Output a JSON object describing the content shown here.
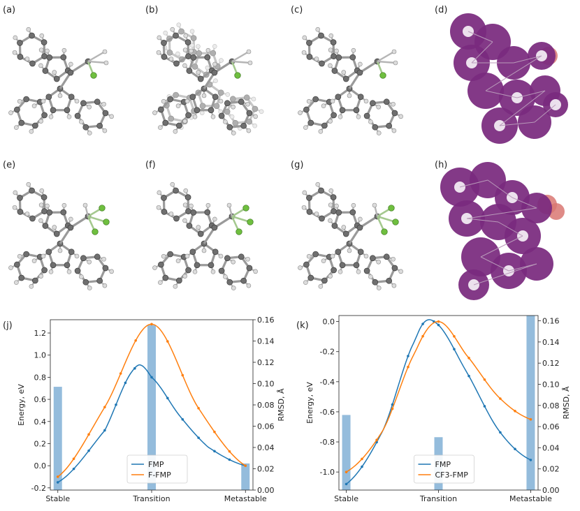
{
  "panel_labels": [
    "(a)",
    "(b)",
    "(c)",
    "(d)",
    "(e)",
    "(f)",
    "(g)",
    "(h)",
    "(j)",
    "(k)"
  ],
  "molecule_views": [
    {
      "panel": "(a)",
      "style": "ball-and-stick",
      "overlay": false,
      "fluorines": 1
    },
    {
      "panel": "(b)",
      "style": "ball-and-stick",
      "overlay": true,
      "fluorines": 1
    },
    {
      "panel": "(c)",
      "style": "ball-and-stick",
      "overlay": false,
      "fluorines": 1
    },
    {
      "panel": "(d)",
      "style": "surface",
      "overlay": false,
      "surface_color": "#7a2a7e"
    },
    {
      "panel": "(e)",
      "style": "ball-and-stick",
      "overlay": false,
      "fluorines": 3
    },
    {
      "panel": "(f)",
      "style": "ball-and-stick",
      "overlay": false,
      "fluorines": 3
    },
    {
      "panel": "(g)",
      "style": "ball-and-stick",
      "overlay": false,
      "fluorines": 3
    },
    {
      "panel": "(h)",
      "style": "surface",
      "overlay": false,
      "surface_color": "#7a2a7e"
    }
  ],
  "colors": {
    "carbon": "#6f6f6f",
    "hydrogen": "#dcdcdc",
    "fluorine": "#6fbf3f",
    "blue": "#1f77b4",
    "orange": "#ff7f0e",
    "bar": "#94bcdc"
  },
  "chart_data": [
    {
      "panel": "(j)",
      "type": "line",
      "categories": [
        "Stable",
        "Transition",
        "Metastable"
      ],
      "ylabel": "Energy, eV",
      "y2label": "RMSD, Å",
      "ylim": [
        -0.22,
        1.32
      ],
      "yticks": [
        "-0.2",
        "0.0",
        "0.2",
        "0.4",
        "0.6",
        "0.8",
        "1.0",
        "1.2"
      ],
      "y2lim": [
        0,
        0.16
      ],
      "y2ticks": [
        "0.00",
        "0.02",
        "0.04",
        "0.06",
        "0.08",
        "0.10",
        "0.12",
        "0.14",
        "0.16"
      ],
      "bars": {
        "axis": "right",
        "positions": [
          0,
          1,
          2
        ],
        "values": [
          0.097,
          0.155,
          0.025
        ]
      },
      "series": [
        {
          "name": "FMP",
          "color": "#1f77b4",
          "x": [
            0,
            0.5,
            0.82,
            1.0,
            1.3,
            1.6,
            2.0
          ],
          "y": [
            -0.15,
            0.32,
            0.88,
            0.8,
            0.45,
            0.17,
            0.0
          ],
          "pts": [
            0.0,
            0.17,
            0.33,
            0.5,
            0.62,
            0.72,
            0.82,
            1.0,
            1.17,
            1.33,
            1.5,
            1.67,
            1.83,
            2.0
          ]
        },
        {
          "name": "F-FMP",
          "color": "#ff7f0e",
          "x": [
            0,
            0.5,
            1.0,
            1.5,
            2.0
          ],
          "y": [
            -0.1,
            0.53,
            1.28,
            0.52,
            0.0
          ],
          "pts": [
            0.0,
            0.17,
            0.33,
            0.5,
            0.67,
            0.83,
            1.0,
            1.17,
            1.33,
            1.5,
            1.67,
            1.83,
            2.0
          ]
        }
      ],
      "legend": "bottom-center"
    },
    {
      "panel": "(k)",
      "type": "line",
      "categories": [
        "Stable",
        "Transition",
        "Metastable"
      ],
      "ylabel": "Energy, eV",
      "y2label": "RMSD, Å",
      "ylim": [
        -1.12,
        0.04
      ],
      "yticks": [
        "-1.0",
        "-0.8",
        "-0.6",
        "-0.4",
        "-0.2",
        "0.0"
      ],
      "y2lim": [
        0,
        0.165
      ],
      "y2ticks": [
        "0.00",
        "0.02",
        "0.04",
        "0.06",
        "0.08",
        "0.10",
        "0.12",
        "0.14",
        "0.16"
      ],
      "bars": {
        "axis": "right",
        "positions": [
          0,
          1,
          2
        ],
        "values": [
          0.071,
          0.05,
          0.165
        ]
      },
      "series": [
        {
          "name": "FMP",
          "color": "#1f77b4",
          "x": [
            0,
            0.4,
            0.75,
            0.95,
            1.3,
            1.65,
            2.0
          ],
          "y": [
            -1.08,
            -0.72,
            -0.12,
            0.0,
            -0.33,
            -0.72,
            -0.92
          ],
          "pts": [
            0.0,
            0.17,
            0.33,
            0.5,
            0.67,
            0.83,
            0.95,
            1.0,
            1.17,
            1.33,
            1.5,
            1.67,
            1.83,
            2.0
          ]
        },
        {
          "name": "CF3-FMP",
          "color": "#ff7f0e",
          "x": [
            0,
            0.4,
            0.75,
            1.0,
            1.3,
            1.65,
            2.0
          ],
          "y": [
            -1.0,
            -0.72,
            -0.2,
            0.0,
            -0.22,
            -0.5,
            -0.65
          ],
          "pts": [
            0.0,
            0.17,
            0.33,
            0.5,
            0.67,
            0.83,
            1.0,
            1.17,
            1.33,
            1.5,
            1.67,
            1.83,
            2.0
          ]
        }
      ],
      "legend": "bottom-center"
    }
  ]
}
